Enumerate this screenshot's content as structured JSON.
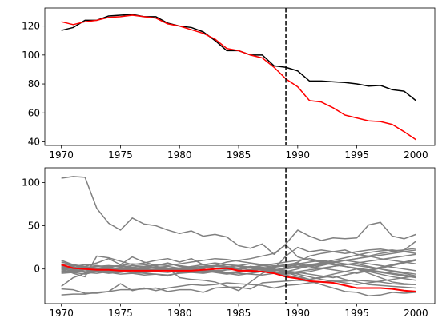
{
  "chart_data": [
    {
      "type": "line",
      "title": "",
      "xlabel": "",
      "ylabel": "",
      "xlim": [
        1968.6,
        2001.6
      ],
      "ylim": [
        37.5,
        132.5
      ],
      "xticks": [
        1970,
        1975,
        1980,
        1985,
        1990,
        1995,
        2000
      ],
      "yticks": [
        40,
        60,
        80,
        100,
        120
      ],
      "vline": 1989,
      "grid": false,
      "x": [
        1970,
        1971,
        1972,
        1973,
        1974,
        1975,
        1976,
        1977,
        1978,
        1979,
        1980,
        1981,
        1982,
        1983,
        1984,
        1985,
        1986,
        1987,
        1988,
        1989,
        1990,
        1991,
        1992,
        1993,
        1994,
        1995,
        1996,
        1997,
        1998,
        1999,
        2000
      ],
      "series": [
        {
          "color": "#000000",
          "values": [
            117,
            119,
            124,
            124,
            127,
            127.5,
            128,
            126.5,
            126.5,
            122,
            120,
            119,
            116,
            110,
            103,
            103,
            100,
            100,
            92.5,
            91.5,
            89,
            82,
            82,
            81.5,
            81,
            80,
            78.5,
            79,
            76,
            75,
            68.5
          ]
        },
        {
          "color": "#ff0000",
          "values": [
            123,
            121,
            123,
            124,
            126,
            126.5,
            127.5,
            126.5,
            125.5,
            121.5,
            120,
            117.5,
            115,
            111,
            104.5,
            103,
            100,
            98,
            91.5,
            83.5,
            78,
            68.5,
            67.5,
            63.5,
            58.5,
            56.5,
            54.5,
            54,
            52,
            47,
            41.5
          ]
        }
      ]
    },
    {
      "type": "line",
      "title": "",
      "xlabel": "",
      "ylabel": "",
      "xlim": [
        1968.6,
        2001.6
      ],
      "ylim": [
        -40,
        117
      ],
      "xticks": [
        1970,
        1975,
        1980,
        1985,
        1990,
        1995,
        2000
      ],
      "yticks": [
        0,
        50,
        100
      ],
      "vline": 1989,
      "grid": false,
      "x": [
        1970,
        1971,
        1972,
        1973,
        1974,
        1975,
        1976,
        1977,
        1978,
        1979,
        1980,
        1981,
        1982,
        1983,
        1984,
        1985,
        1986,
        1987,
        1988,
        1989,
        1990,
        1991,
        1992,
        1993,
        1994,
        1995,
        1996,
        1997,
        1998,
        1999,
        2000
      ],
      "highlight": {
        "color": "#ff0000",
        "values": [
          5,
          1,
          0,
          -1,
          -1,
          -2,
          -2,
          -2,
          -2,
          -2,
          -2,
          -2,
          -1,
          0,
          1,
          -2,
          -2,
          -3,
          -5,
          -9,
          -11,
          -14,
          -15,
          -16,
          -19,
          -22,
          -22,
          -22,
          -23,
          -25,
          -26
        ]
      },
      "gray_color": "#808080",
      "gray_series": [
        [
          105,
          107,
          106,
          70,
          53,
          45,
          59,
          52,
          50,
          45,
          41,
          44,
          38,
          40,
          37,
          27,
          24,
          29,
          17,
          29,
          45,
          38,
          33,
          36,
          35,
          36,
          51,
          54,
          38,
          35,
          40
        ],
        [
          -20,
          -10,
          -5,
          0,
          -2,
          -2,
          -1,
          -3,
          -2,
          1,
          -10,
          -12,
          -13,
          -15,
          -20,
          -25,
          -15,
          -5,
          0,
          15,
          25,
          20,
          22,
          20,
          18,
          20,
          22,
          23,
          21,
          22,
          32
        ],
        [
          10,
          5,
          -1,
          -3,
          -2,
          -1,
          -2,
          -1,
          0,
          -2,
          0,
          2,
          3,
          4,
          8,
          10,
          12,
          15,
          18,
          28,
          14,
          10,
          8,
          5,
          3,
          0,
          -5,
          -10,
          -15,
          -17,
          -18
        ],
        [
          -30,
          -29,
          -29,
          -27,
          -26,
          -24,
          -24,
          -23,
          -22,
          -26,
          -24,
          -24,
          -27,
          -22,
          -21,
          -21,
          -23,
          -16,
          -15,
          -14,
          -13,
          -14,
          -18,
          -22,
          -26,
          -27,
          -31,
          -30,
          -27,
          -28,
          -27
        ],
        [
          -23,
          -24,
          -28,
          -28,
          -26,
          -17,
          -25,
          -22,
          -25,
          -22,
          -20,
          -18,
          -19,
          -18,
          -16,
          -17,
          -18,
          -19,
          -22,
          -19,
          -18,
          -16,
          -15,
          -14,
          -14,
          -13,
          -14,
          -15,
          -17,
          -18,
          -18
        ],
        [
          8,
          5,
          3,
          7,
          12,
          5,
          14,
          8,
          4,
          7,
          3,
          2,
          0,
          -3,
          -5,
          -7,
          -5,
          -3,
          -2,
          0,
          2,
          4,
          6,
          8,
          10,
          12,
          14,
          16,
          18,
          20,
          22
        ],
        [
          0,
          -5,
          -9,
          15,
          13,
          9,
          5,
          7,
          10,
          12,
          8,
          12,
          5,
          3,
          2,
          4,
          6,
          4,
          2,
          5,
          7,
          3,
          5,
          8,
          10,
          12,
          15,
          18,
          20,
          22,
          24
        ],
        [
          2,
          0,
          -3,
          -2,
          -4,
          -6,
          -5,
          -7,
          -6,
          -8,
          -4,
          -3,
          -2,
          0,
          1,
          -1,
          3,
          0,
          -1,
          -4,
          -8,
          -12,
          -10,
          -8,
          -12,
          -15,
          -18,
          -19,
          -20,
          -21,
          -22
        ],
        [
          -3,
          -1,
          2,
          1,
          3,
          4,
          2,
          3,
          5,
          4,
          6,
          8,
          10,
          12,
          11,
          9,
          7,
          5,
          4,
          3,
          8,
          15,
          18,
          20,
          22,
          17,
          15,
          12,
          10,
          8,
          6
        ],
        [
          5,
          -2,
          -4,
          -5,
          -3,
          -2,
          0,
          -1,
          -3,
          -4,
          -2,
          1,
          0,
          -2,
          -4,
          -5,
          -6,
          -7,
          -5,
          -3,
          0,
          4,
          7,
          10,
          13,
          16,
          19,
          21,
          22,
          20,
          18
        ],
        [
          -5,
          -4,
          -6,
          -3,
          -1,
          0,
          1,
          -2,
          -3,
          -1,
          0,
          2,
          3,
          1,
          0,
          -1,
          -3,
          -2,
          -4,
          -6,
          -5,
          -3,
          0,
          3,
          5,
          6,
          3,
          0,
          -3,
          -5,
          -8
        ],
        [
          3,
          2,
          1,
          0,
          -1,
          -3,
          -4,
          -5,
          -6,
          -7,
          -5,
          -4,
          -3,
          -2,
          -1,
          0,
          2,
          4,
          6,
          8,
          10,
          12,
          9,
          6,
          3,
          0,
          -3,
          -6,
          -9,
          -11,
          -13
        ],
        [
          -1,
          0,
          2,
          3,
          4,
          3,
          1,
          0,
          -2,
          -1,
          1,
          3,
          5,
          7,
          5,
          3,
          1,
          -1,
          -3,
          -5,
          -3,
          -1,
          1,
          3,
          5,
          7,
          9,
          11,
          13,
          15,
          17
        ],
        [
          1,
          3,
          5,
          4,
          2,
          0,
          -2,
          -4,
          -3,
          -1,
          0,
          -2,
          -4,
          -3,
          -1,
          1,
          3,
          2,
          0,
          -2,
          -4,
          -6,
          -8,
          -10,
          -7,
          -4,
          -1,
          2,
          5,
          8,
          11
        ],
        [
          4,
          2,
          0,
          -2,
          0,
          2,
          4,
          3,
          1,
          -1,
          -3,
          -1,
          1,
          3,
          5,
          4,
          2,
          0,
          -2,
          2,
          5,
          3,
          1,
          -1,
          -3,
          -5,
          -2,
          1,
          4,
          7,
          10
        ],
        [
          -2,
          -3,
          -1,
          1,
          0,
          -2,
          -1,
          1,
          2,
          0,
          -1,
          -3,
          -2,
          0,
          2,
          1,
          -1,
          -3,
          -5,
          -7,
          -10,
          -12,
          -9,
          -6,
          -3,
          0,
          -2,
          -4,
          -6,
          -8,
          -10
        ],
        [
          6,
          4,
          2,
          1,
          -1,
          -2,
          0,
          2,
          4,
          6,
          4,
          2,
          0,
          -2,
          -4,
          -3,
          -1,
          1,
          3,
          5,
          3,
          1,
          4,
          7,
          10,
          8,
          6,
          4,
          2,
          0,
          -2
        ],
        [
          0,
          1,
          -1,
          -2,
          -3,
          -1,
          1,
          0,
          -1,
          -2,
          -3,
          -4,
          -5,
          -3,
          -1,
          0,
          2,
          1,
          -1,
          -3,
          -6,
          -9,
          -12,
          -14,
          -16,
          -18,
          -16,
          -14,
          -12,
          -10,
          -8
        ],
        [
          -4,
          -2,
          -1,
          -3,
          -5,
          -4,
          -2,
          0,
          2,
          3,
          1,
          -1,
          -2,
          -4,
          -6,
          -4,
          -2,
          0,
          2,
          4,
          6,
          8,
          10,
          8,
          6,
          4,
          2,
          0,
          -2,
          -4,
          -6
        ],
        [
          2,
          4,
          3,
          1,
          2,
          4,
          6,
          5,
          3,
          1,
          -1,
          0,
          2,
          4,
          3,
          1,
          -1,
          -3,
          -1,
          1,
          3,
          5,
          7,
          5,
          3,
          1,
          -1,
          -3,
          -5,
          -7,
          -9
        ]
      ]
    }
  ]
}
